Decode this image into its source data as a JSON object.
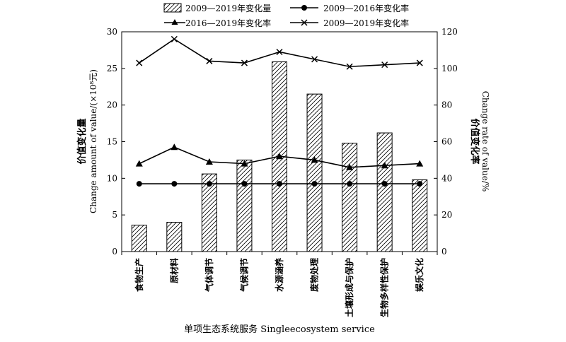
{
  "chart_data": {
    "type": "bar+line",
    "categories": [
      "食物生产",
      "原材料",
      "气体调节",
      "气候调节",
      "水源涵养",
      "废物处理",
      "土壤形成与保护",
      "生物多样性保护",
      "娱乐文化"
    ],
    "bar_series": {
      "name": "2009—2019年变化量",
      "axis": "left",
      "values": [
        3.6,
        4.0,
        10.6,
        12.5,
        25.9,
        21.5,
        14.8,
        16.2,
        9.8
      ]
    },
    "line_series": [
      {
        "name": "2009—2016年变化率",
        "axis": "right",
        "marker": "circle",
        "values": [
          37,
          37,
          37,
          37,
          37,
          37,
          37,
          37,
          37
        ]
      },
      {
        "name": "2016—2019年变化率",
        "axis": "right",
        "marker": "triangle",
        "values": [
          48,
          57,
          49,
          48,
          52,
          50,
          46,
          47,
          48
        ]
      },
      {
        "name": "2009—2019年变化率",
        "axis": "right",
        "marker": "cross",
        "values": [
          103,
          116,
          104,
          103,
          109,
          105,
          101,
          102,
          103
        ]
      }
    ],
    "y_left": {
      "label_cn": "价值变化量",
      "label_en": "Change amount of value/(×10⁸元)",
      "ylim": [
        0,
        30
      ],
      "ticks": [
        "0",
        "5",
        "10",
        "15",
        "20",
        "25",
        "30"
      ]
    },
    "y_right": {
      "label_cn": "价值变化率",
      "label_en": "Change rate of value/%",
      "ylim": [
        0,
        120
      ],
      "ticks": [
        "0",
        "20",
        "40",
        "60",
        "80",
        "100",
        "120"
      ]
    },
    "x_label": "单项生态系统服务 Singleecosystem  service",
    "legend_position": "top",
    "grid": false
  }
}
